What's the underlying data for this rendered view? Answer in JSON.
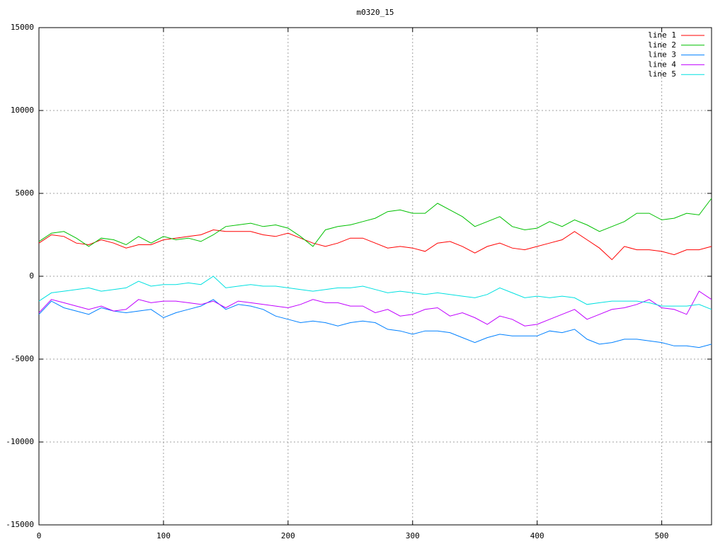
{
  "chart_data": {
    "type": "line",
    "title": "m0320_15",
    "x": [
      0,
      10,
      20,
      30,
      40,
      50,
      60,
      70,
      80,
      90,
      100,
      110,
      120,
      130,
      140,
      150,
      160,
      170,
      180,
      190,
      200,
      210,
      220,
      230,
      240,
      250,
      260,
      270,
      280,
      290,
      300,
      310,
      320,
      330,
      340,
      350,
      360,
      370,
      380,
      390,
      400,
      410,
      420,
      430,
      440,
      450,
      460,
      470,
      480,
      490,
      500,
      510,
      520,
      530,
      540
    ],
    "series": [
      {
        "name": "line 1",
        "color": "#ff0000",
        "values": [
          2000,
          2500,
          2400,
          2000,
          1900,
          2200,
          2000,
          1700,
          1900,
          1900,
          2200,
          2300,
          2400,
          2500,
          2800,
          2700,
          2700,
          2700,
          2500,
          2400,
          2600,
          2300,
          2000,
          1800,
          2000,
          2300,
          2300,
          2000,
          1700,
          1800,
          1700,
          1500,
          2000,
          2100,
          1800,
          1400,
          1800,
          2000,
          1700,
          1600,
          1800,
          2000,
          2200,
          2700,
          2200,
          1700,
          1000,
          1800,
          1600,
          1600,
          1500,
          1300,
          1600,
          1600,
          1800
        ]
      },
      {
        "name": "line 2",
        "color": "#00c000",
        "values": [
          2100,
          2600,
          2700,
          2300,
          1800,
          2300,
          2200,
          1900,
          2400,
          2000,
          2400,
          2200,
          2300,
          2100,
          2500,
          3000,
          3100,
          3200,
          3000,
          3100,
          2900,
          2400,
          1800,
          2800,
          3000,
          3100,
          3300,
          3500,
          3900,
          4000,
          3800,
          3800,
          4400,
          4000,
          3600,
          3000,
          3300,
          3600,
          3000,
          2800,
          2900,
          3300,
          3000,
          3400,
          3100,
          2700,
          3000,
          3300,
          3800,
          3800,
          3400,
          3500,
          3800,
          3700,
          4700
        ]
      },
      {
        "name": "line 3",
        "color": "#0080ff",
        "values": [
          -2300,
          -1500,
          -1900,
          -2100,
          -2300,
          -1900,
          -2100,
          -2200,
          -2100,
          -2000,
          -2500,
          -2200,
          -2000,
          -1800,
          -1400,
          -2000,
          -1700,
          -1800,
          -2000,
          -2400,
          -2600,
          -2800,
          -2700,
          -2800,
          -3000,
          -2800,
          -2700,
          -2800,
          -3200,
          -3300,
          -3500,
          -3300,
          -3300,
          -3400,
          -3700,
          -4000,
          -3700,
          -3500,
          -3600,
          -3600,
          -3600,
          -3300,
          -3400,
          -3200,
          -3800,
          -4100,
          -4000,
          -3800,
          -3800,
          -3900,
          -4000,
          -4200,
          -4200,
          -4300,
          -4100
        ]
      },
      {
        "name": "line 4",
        "color": "#c000ff",
        "values": [
          -2200,
          -1400,
          -1600,
          -1800,
          -2000,
          -1800,
          -2100,
          -2000,
          -1400,
          -1600,
          -1500,
          -1500,
          -1600,
          -1700,
          -1500,
          -1900,
          -1500,
          -1600,
          -1700,
          -1800,
          -1900,
          -1700,
          -1400,
          -1600,
          -1600,
          -1800,
          -1800,
          -2200,
          -2000,
          -2400,
          -2300,
          -2000,
          -1900,
          -2400,
          -2200,
          -2500,
          -2900,
          -2400,
          -2600,
          -3000,
          -2900,
          -2600,
          -2300,
          -2000,
          -2600,
          -2300,
          -2000,
          -1900,
          -1700,
          -1400,
          -1900,
          -2000,
          -2300,
          -900,
          -1400
        ]
      },
      {
        "name": "line 5",
        "color": "#00e0e0",
        "values": [
          -1500,
          -1000,
          -900,
          -800,
          -700,
          -900,
          -800,
          -700,
          -300,
          -600,
          -500,
          -500,
          -400,
          -500,
          0,
          -700,
          -600,
          -500,
          -600,
          -600,
          -700,
          -800,
          -900,
          -800,
          -700,
          -700,
          -600,
          -800,
          -1000,
          -900,
          -1000,
          -1100,
          -1000,
          -1100,
          -1200,
          -1300,
          -1100,
          -700,
          -1000,
          -1300,
          -1200,
          -1300,
          -1200,
          -1300,
          -1700,
          -1600,
          -1500,
          -1500,
          -1500,
          -1600,
          -1800,
          -1800,
          -1800,
          -1700,
          -2000
        ]
      }
    ],
    "xlim": [
      0,
      540
    ],
    "xticks": [
      0,
      100,
      200,
      300,
      400,
      500
    ],
    "ylim": [
      -15000,
      15000
    ],
    "yticks": [
      -15000,
      -10000,
      -5000,
      0,
      5000,
      10000,
      15000
    ],
    "grid": true,
    "legend": "top-right"
  }
}
